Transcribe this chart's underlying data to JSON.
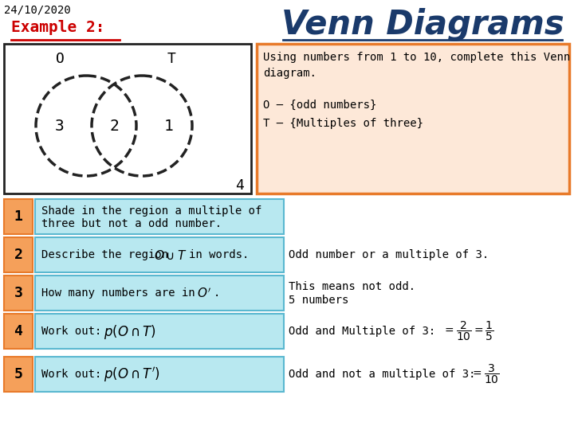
{
  "title": "Venn Diagrams",
  "date": "24/10/2020",
  "example_label": "Example 2:",
  "venn_label_O": "O",
  "venn_label_T": "T",
  "venn_number_left": "3",
  "venn_number_center": "2",
  "venn_number_right": "1",
  "venn_number_outside": "4",
  "info_box_text_line1": "Using numbers from 1 to 10, complete this Venn",
  "info_box_text_line2": "diagram.",
  "info_box_text_line3": "O – {odd numbers}",
  "info_box_text_line4": "T – {Multiples of three}",
  "row1_num": "1",
  "row2_num": "2",
  "row2_answer": "Odd number or a multiple of 3.",
  "row3_num": "3",
  "row3_answer_line1": "This means not odd.",
  "row3_answer_line2": "5 numbers",
  "row4_num": "4",
  "row4_answer_prefix": "Odd and Multiple of 3:",
  "row5_num": "5",
  "row5_answer_prefix": "Odd and not a multiple of 3:",
  "bg_color": "#ffffff",
  "title_color": "#1a3a6b",
  "example_color": "#cc0000",
  "info_box_bg": "#fde8d8",
  "info_box_border": "#e87a2a",
  "row_num_bg": "#f5a05a",
  "row_num_border": "#e87a2a",
  "row_text_bg": "#b8e8f0",
  "row_text_border": "#5ab8d0",
  "venn_circle_color": "#222222",
  "venn_box_color": "#222222"
}
